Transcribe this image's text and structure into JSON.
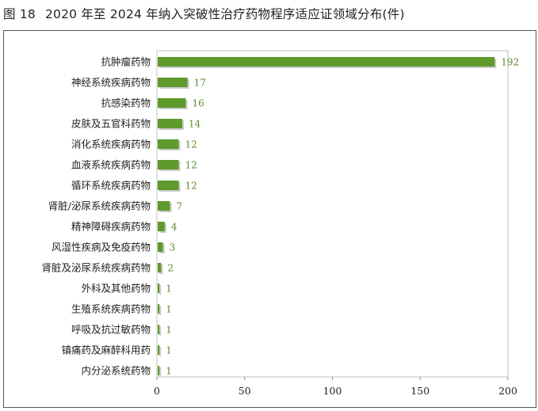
{
  "figure": {
    "number": "图 18",
    "title": "2020 年至 2024 年纳入突破性治疗药物程序适应证领域分布(件)"
  },
  "colors": {
    "bar": "#5e9a2c",
    "bar_shadow": "#c9c9c9",
    "value_label": "#5a8a2a",
    "plot_border": "#bfbfbf"
  },
  "chart_data": {
    "type": "bar",
    "orientation": "horizontal",
    "title": "",
    "xlabel": "",
    "ylabel": "",
    "xlim": [
      0,
      200
    ],
    "x_ticks": [
      0,
      50,
      100,
      150,
      200
    ],
    "grid": false,
    "legend": "none",
    "categories": [
      "抗肿瘤药物",
      "神经系统疾病药物",
      "抗感染药物",
      "皮肤及五官科药物",
      "消化系统疾病药物",
      "血液系统疾病药物",
      "循环系统疾病药物",
      "肾脏/泌尿系统疾病药物",
      "精神障碍疾病药物",
      "风湿性疾病及免疫药物",
      "肾脏及泌尿系统疾病药物",
      "外科及其他药物",
      "生殖系统疾病药物",
      "呼吸及抗过敏药物",
      "镇痛药及麻醉科用药",
      "内分泌系统药物"
    ],
    "values": [
      192,
      17,
      16,
      14,
      12,
      12,
      12,
      7,
      4,
      3,
      2,
      1,
      1,
      1,
      1,
      1
    ]
  }
}
